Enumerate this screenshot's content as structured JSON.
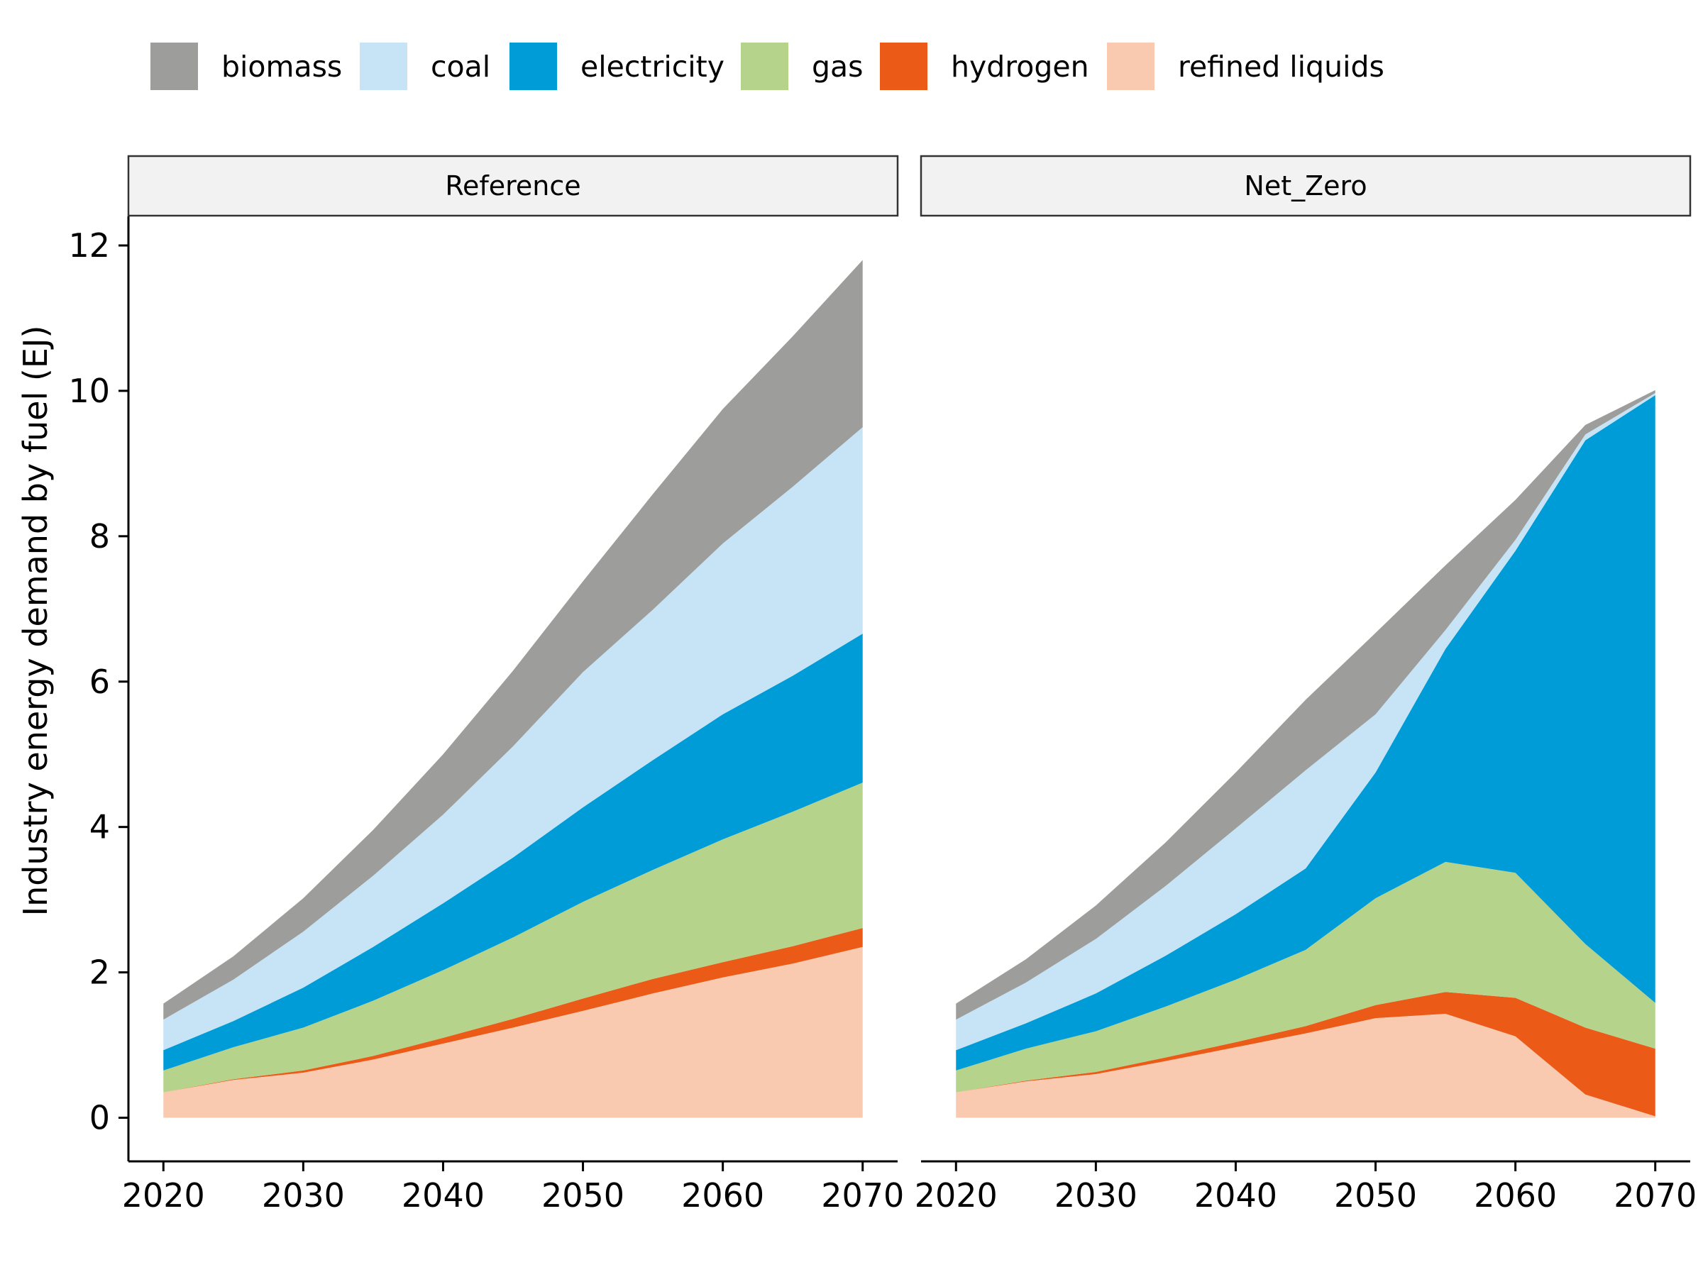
{
  "chart_data": {
    "type": "area",
    "stacked": true,
    "ylabel": "Industry energy demand by fuel (EJ)",
    "xlabel": "",
    "x": [
      2020,
      2025,
      2030,
      2035,
      2040,
      2045,
      2050,
      2055,
      2060,
      2065,
      2070
    ],
    "x_ticks": [
      2020,
      2030,
      2040,
      2050,
      2060,
      2070
    ],
    "y_ticks": [
      0,
      2,
      4,
      6,
      8,
      10,
      12
    ],
    "xlim": [
      2017.5,
      2072.5
    ],
    "ylim": [
      -0.6,
      12.4
    ],
    "grid": false,
    "legend_position": "top",
    "legend": [
      {
        "name": "biomass",
        "color": "#9d9d9c"
      },
      {
        "name": "coal",
        "color": "#c6e4f5"
      },
      {
        "name": "electricity",
        "color": "#009cd7"
      },
      {
        "name": "gas",
        "color": "#b5d38b"
      },
      {
        "name": "hydrogen",
        "color": "#eb5a17"
      },
      {
        "name": "refined liquids",
        "color": "#f9cab0"
      }
    ],
    "stack_order": [
      "refined liquids",
      "hydrogen",
      "gas",
      "electricity",
      "coal",
      "biomass"
    ],
    "panels": [
      {
        "label": "Reference",
        "series": [
          {
            "name": "refined liquids",
            "values": [
              0.35,
              0.52,
              0.62,
              0.8,
              1.02,
              1.24,
              1.47,
              1.71,
              1.93,
              2.12,
              2.35
            ]
          },
          {
            "name": "hydrogen",
            "values": [
              0.0,
              0.01,
              0.03,
              0.05,
              0.08,
              0.12,
              0.17,
              0.2,
              0.21,
              0.24,
              0.26
            ]
          },
          {
            "name": "gas",
            "values": [
              0.3,
              0.44,
              0.59,
              0.76,
              0.93,
              1.12,
              1.33,
              1.5,
              1.69,
              1.85,
              2.0
            ]
          },
          {
            "name": "electricity",
            "values": [
              0.28,
              0.36,
              0.55,
              0.74,
              0.92,
              1.1,
              1.3,
              1.51,
              1.72,
              1.87,
              2.05
            ]
          },
          {
            "name": "coal",
            "values": [
              0.42,
              0.57,
              0.77,
              0.98,
              1.22,
              1.53,
              1.86,
              2.07,
              2.35,
              2.6,
              2.84
            ]
          },
          {
            "name": "biomass",
            "values": [
              0.22,
              0.32,
              0.46,
              0.63,
              0.83,
              1.04,
              1.25,
              1.59,
              1.85,
              2.07,
              2.3
            ]
          }
        ]
      },
      {
        "label": "Net_Zero",
        "series": [
          {
            "name": "refined liquids",
            "values": [
              0.35,
              0.5,
              0.6,
              0.78,
              0.97,
              1.16,
              1.37,
              1.43,
              1.12,
              0.32,
              0.02
            ]
          },
          {
            "name": "hydrogen",
            "values": [
              0.0,
              0.01,
              0.03,
              0.05,
              0.07,
              0.1,
              0.18,
              0.3,
              0.53,
              0.92,
              0.93
            ]
          },
          {
            "name": "gas",
            "values": [
              0.3,
              0.44,
              0.56,
              0.7,
              0.86,
              1.05,
              1.47,
              1.79,
              1.72,
              1.15,
              0.63
            ]
          },
          {
            "name": "electricity",
            "values": [
              0.28,
              0.35,
              0.52,
              0.7,
              0.9,
              1.12,
              1.73,
              2.93,
              4.43,
              6.93,
              8.36
            ]
          },
          {
            "name": "coal",
            "values": [
              0.42,
              0.56,
              0.75,
              0.96,
              1.18,
              1.35,
              0.8,
              0.26,
              0.15,
              0.08,
              0.03
            ]
          },
          {
            "name": "biomass",
            "values": [
              0.22,
              0.32,
              0.46,
              0.6,
              0.77,
              0.97,
              1.12,
              0.89,
              0.55,
              0.13,
              0.04
            ]
          }
        ]
      }
    ]
  }
}
